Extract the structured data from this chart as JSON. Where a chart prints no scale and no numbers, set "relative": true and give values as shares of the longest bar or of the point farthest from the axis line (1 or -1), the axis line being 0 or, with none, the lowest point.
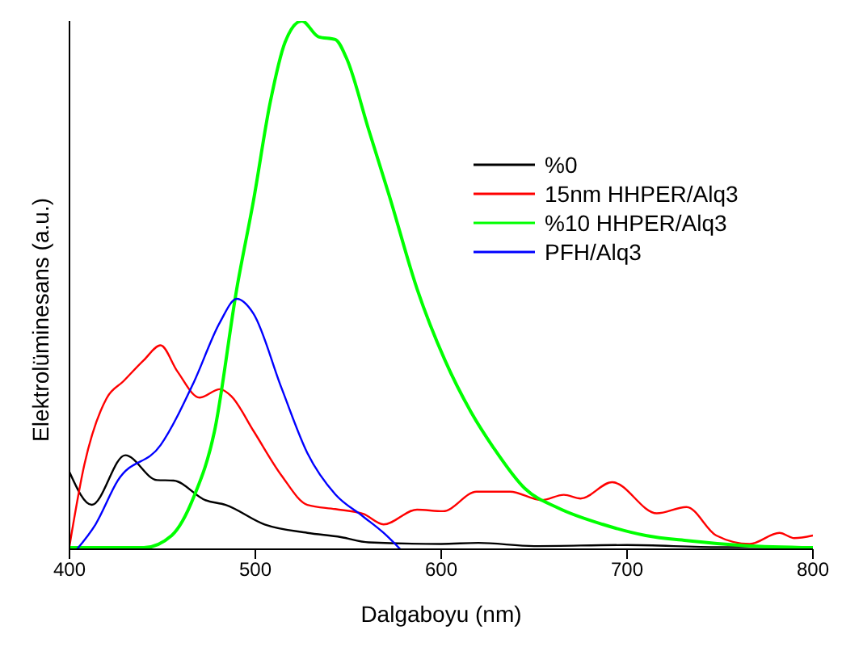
{
  "chart_data": {
    "type": "line",
    "relative": true,
    "xlabel": "Dalgaboyu (nm)",
    "ylabel": "Elektrolüminesans (a.u.)",
    "xlim": [
      400,
      800
    ],
    "xticks": [
      400,
      500,
      600,
      700,
      800
    ],
    "legend": "top right",
    "series": [
      {
        "name": "%0",
        "color": "#000000",
        "x": [
          400,
          412,
          430,
          447,
          456,
          473,
          484,
          505,
          528,
          546,
          561,
          600,
          620,
          650,
          700,
          750,
          800
        ],
        "values": [
          0.146,
          0.084,
          0.178,
          0.131,
          0.13,
          0.093,
          0.084,
          0.047,
          0.031,
          0.023,
          0.013,
          0.01,
          0.012,
          0.006,
          0.008,
          0.004,
          0.004
        ]
      },
      {
        "name": "15nm HHPER/Alq3",
        "color": "#ff0000",
        "x": [
          400,
          408,
          420,
          429,
          440,
          449,
          458,
          470,
          481,
          487,
          499,
          514,
          528,
          543,
          558,
          569,
          587,
          601,
          619,
          637,
          654,
          666,
          675,
          692,
          716,
          732,
          748,
          766,
          782,
          790,
          800
        ],
        "values": [
          0.006,
          0.16,
          0.286,
          0.318,
          0.358,
          0.386,
          0.337,
          0.287,
          0.303,
          0.29,
          0.224,
          0.14,
          0.084,
          0.076,
          0.067,
          0.047,
          0.075,
          0.072,
          0.109,
          0.109,
          0.093,
          0.103,
          0.096,
          0.127,
          0.068,
          0.08,
          0.026,
          0.01,
          0.031,
          0.021,
          0.026
        ]
      },
      {
        "name": "%10  HHPER/Alq3",
        "color": "#00ff00",
        "x": [
          400,
          440,
          455,
          467,
          478,
          490,
          499,
          508,
          516,
          525,
          534,
          543,
          549,
          561,
          572,
          587,
          602,
          616,
          628,
          645,
          663,
          687,
          710,
          733,
          763,
          800
        ],
        "values": [
          0.003,
          0.003,
          0.026,
          0.1,
          0.223,
          0.493,
          0.66,
          0.846,
          0.96,
          1,
          0.97,
          0.965,
          0.93,
          0.794,
          0.67,
          0.493,
          0.358,
          0.26,
          0.193,
          0.115,
          0.078,
          0.047,
          0.026,
          0.016,
          0.007,
          0.003
        ]
      },
      {
        "name": "PFH/Alq3",
        "color": "#0000ff",
        "x": [
          404,
          414,
          426,
          449,
          467,
          481,
          490,
          499,
          514,
          528,
          543,
          558,
          569,
          578
        ],
        "values": [
          0,
          0.047,
          0.13,
          0.197,
          0.317,
          0.43,
          0.474,
          0.446,
          0.306,
          0.182,
          0.104,
          0.062,
          0.031,
          0
        ]
      }
    ]
  }
}
